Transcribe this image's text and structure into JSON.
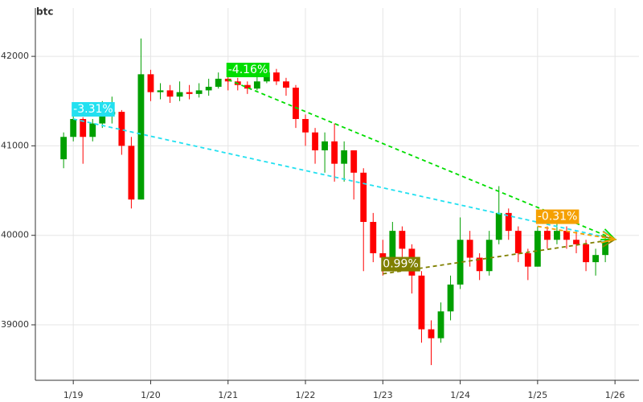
{
  "chart_data": {
    "type": "candlestick",
    "title": "btc",
    "up_color": "#00a000",
    "down_color": "#ff0000",
    "grid": true,
    "xlim": [
      18.51,
      26.31
    ],
    "ylim": [
      38380,
      42540
    ],
    "xticks": [
      {
        "value": 19,
        "label": "1/19"
      },
      {
        "value": 20,
        "label": "1/20"
      },
      {
        "value": 21,
        "label": "1/21"
      },
      {
        "value": 22,
        "label": "1/22"
      },
      {
        "value": 23,
        "label": "1/23"
      },
      {
        "value": 24,
        "label": "1/24"
      },
      {
        "value": 25,
        "label": "1/25"
      },
      {
        "value": 26,
        "label": "1/26"
      }
    ],
    "yticks": [
      39000,
      40000,
      41000,
      42000
    ],
    "x": [
      18.875,
      19,
      19.125,
      19.25,
      19.375,
      19.5,
      19.625,
      19.75,
      19.875,
      20,
      20.125,
      20.25,
      20.375,
      20.5,
      20.625,
      20.75,
      20.875,
      21,
      21.125,
      21.25,
      21.375,
      21.5,
      21.625,
      21.75,
      21.875,
      22,
      22.125,
      22.25,
      22.375,
      22.5,
      22.625,
      22.75,
      22.875,
      23,
      23.125,
      23.25,
      23.375,
      23.5,
      23.625,
      23.75,
      23.875,
      24,
      24.125,
      24.25,
      24.375,
      24.5,
      24.625,
      24.75,
      24.875,
      25,
      25.125,
      25.25,
      25.375,
      25.5,
      25.625,
      25.75,
      25.875
    ],
    "open": [
      40850,
      41100,
      41300,
      41100,
      41250,
      41350,
      41380,
      41000,
      40400,
      41800,
      41600,
      41620,
      41550,
      41600,
      41580,
      41620,
      41660,
      41750,
      41720,
      41680,
      41640,
      41720,
      41820,
      41720,
      41650,
      41300,
      41150,
      40950,
      41050,
      40800,
      40950,
      40700,
      40150,
      39800,
      39750,
      40050,
      39850,
      39550,
      38950,
      38850,
      39150,
      39450,
      39950,
      39750,
      39600,
      39950,
      40250,
      40050,
      39800,
      39650,
      40050,
      39950,
      40050,
      39950,
      39900,
      39700,
      39780
    ],
    "high": [
      41150,
      41350,
      41320,
      41300,
      41500,
      41550,
      41400,
      41100,
      42200,
      41850,
      41700,
      41680,
      41720,
      41680,
      41700,
      41750,
      41820,
      41800,
      41760,
      41720,
      41780,
      41880,
      41860,
      41760,
      41680,
      41350,
      41200,
      41150,
      41250,
      41050,
      40950,
      40750,
      40250,
      39950,
      40150,
      40100,
      39900,
      39600,
      39050,
      39250,
      39550,
      40200,
      40050,
      39800,
      40050,
      40550,
      40300,
      40100,
      39850,
      40100,
      40100,
      40280,
      40100,
      40050,
      39950,
      39850,
      39980
    ],
    "low": [
      40750,
      41050,
      40800,
      41050,
      41200,
      41250,
      40900,
      40300,
      40400,
      41500,
      41520,
      41480,
      41500,
      41520,
      41540,
      41560,
      41640,
      41620,
      41620,
      41580,
      41620,
      41700,
      41680,
      41560,
      41200,
      41000,
      40800,
      40700,
      40600,
      40600,
      40400,
      39600,
      39700,
      39550,
      39650,
      39700,
      39350,
      38800,
      38550,
      38800,
      39050,
      39400,
      39650,
      39500,
      39550,
      39900,
      39950,
      39700,
      39500,
      39650,
      39850,
      39900,
      39850,
      39800,
      39600,
      39550,
      39700
    ],
    "close": [
      41100,
      41300,
      41100,
      41250,
      41350,
      41380,
      41000,
      40400,
      41800,
      41600,
      41620,
      41550,
      41600,
      41580,
      41620,
      41660,
      41750,
      41720,
      41680,
      41640,
      41720,
      41820,
      41720,
      41650,
      41300,
      41150,
      40950,
      41050,
      40800,
      40950,
      40700,
      40150,
      39800,
      39750,
      40050,
      39850,
      39550,
      38950,
      38850,
      39150,
      39450,
      39950,
      39750,
      39600,
      39950,
      40250,
      40050,
      39800,
      39650,
      40050,
      39950,
      40050,
      39950,
      39900,
      39700,
      39780,
      39930
    ],
    "target": {
      "x": 26,
      "y": 39955
    },
    "annotations": [
      {
        "text": "-3.31%",
        "x": 19,
        "y": 41300,
        "color": "#22e0f0"
      },
      {
        "text": "-4.16%",
        "x": 21,
        "y": 41740,
        "color": "#00dd00"
      },
      {
        "text": "0.99%",
        "x": 23,
        "y": 39570,
        "color": "#808000"
      },
      {
        "text": "-0.31%",
        "x": 25,
        "y": 40100,
        "color": "#f5a000"
      }
    ]
  }
}
